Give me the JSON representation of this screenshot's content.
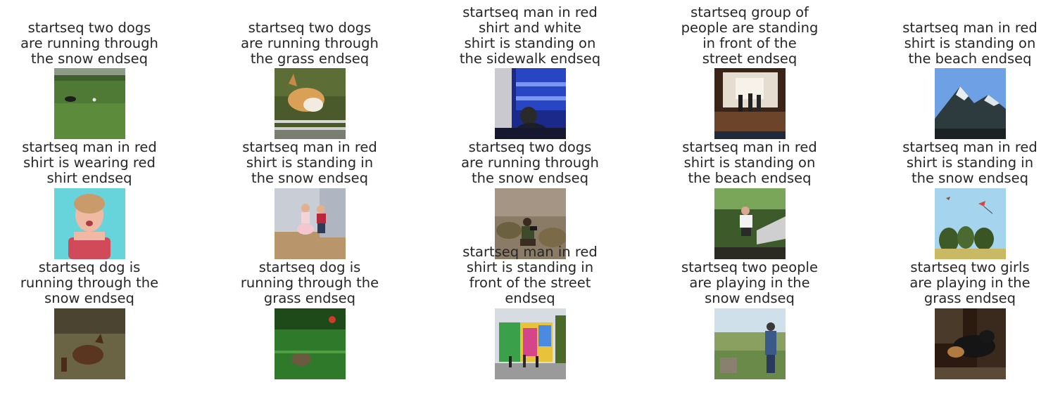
{
  "panels": [
    {
      "caption": "startseq two dogs\nare running through\nthe snow endseq",
      "scene": "dog on grass field with ball"
    },
    {
      "caption": "startseq two dogs\nare running through\nthe grass endseq",
      "scene": "corgi jumping over fence"
    },
    {
      "caption": "startseq man in red\nshirt and white\nshirt is standing on\nthe sidewalk endseq",
      "scene": "woman in blue-lit subway car"
    },
    {
      "caption": "startseq group of\npeople are standing\nin front of the\nstreet endseq",
      "scene": "people in a hall with chairs"
    },
    {
      "caption": "startseq man in red\nshirt is standing on\nthe beach endseq",
      "scene": "snowy mountain peak under blue sky"
    },
    {
      "caption": "startseq man in red\nshirt is wearing red\nshirt endseq",
      "scene": "girl in pink swimsuit in pool"
    },
    {
      "caption": "startseq man in red\nshirt is standing in\nthe snow endseq",
      "scene": "two children dancing on wood floor"
    },
    {
      "caption": "startseq two dogs\nare running through\nthe snow endseq",
      "scene": "photographer crouching in bushes"
    },
    {
      "caption": "startseq man in red\nshirt is standing on\nthe beach endseq",
      "scene": "skateboarder jumping off ramp"
    },
    {
      "caption": "startseq man in red\nshirt is standing in\nthe snow endseq",
      "scene": "kite over trees and field"
    },
    {
      "caption": "startseq dog is\nrunning through the\nsnow endseq",
      "scene": "brown dog on grass"
    },
    {
      "caption": "startseq dog is\nrunning through the\ngrass endseq",
      "scene": "small dog in green grass with red ball"
    },
    {
      "caption": "startseq man in red\nshirt is standing in\nfront of the street\nendseq",
      "scene": "colorful painted building with crowd"
    },
    {
      "caption": "startseq two people\nare playing in the\nsnow endseq",
      "scene": "hikers overlooking green valley"
    },
    {
      "caption": "startseq two girls\nare playing in the\ngrass endseq",
      "scene": "black dog and small dog indoors"
    }
  ]
}
